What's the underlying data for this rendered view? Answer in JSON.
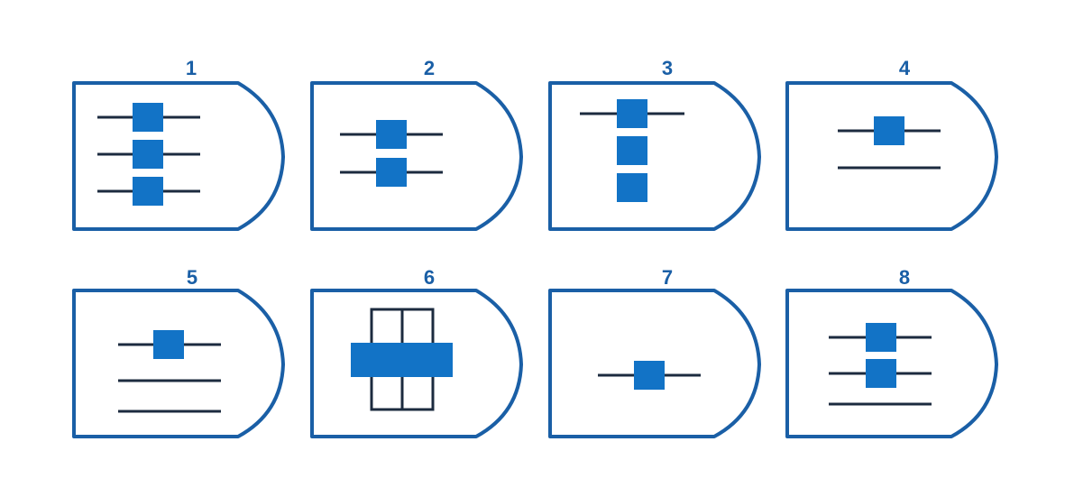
{
  "colors": {
    "accent": "#1273c6",
    "outline": "#1a5fa6",
    "line": "#1c2b3f",
    "background": "#ffffff"
  },
  "cards": [
    {
      "label": "1",
      "icon": "three-blocks-on-three-lines-icon"
    },
    {
      "label": "2",
      "icon": "two-blocks-on-two-lines-icon"
    },
    {
      "label": "3",
      "icon": "three-stacked-blocks-on-one-line-icon"
    },
    {
      "label": "4",
      "icon": "block-on-line-over-plain-line-icon"
    },
    {
      "label": "5",
      "icon": "block-on-line-over-two-plain-lines-icon"
    },
    {
      "label": "6",
      "icon": "cross-bar-with-framed-panes-icon"
    },
    {
      "label": "7",
      "icon": "single-block-on-line-icon"
    },
    {
      "label": "8",
      "icon": "two-blocks-on-lines-over-plain-line-icon"
    }
  ]
}
